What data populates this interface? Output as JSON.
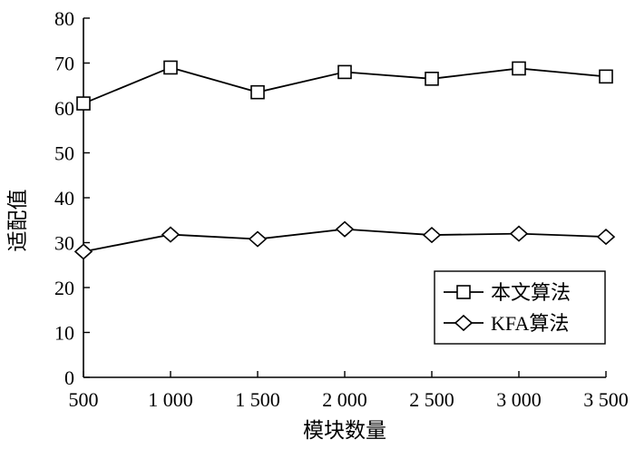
{
  "chart_data": {
    "type": "line",
    "xlabel": "模块数量",
    "ylabel": "适配值",
    "x": [
      500,
      1000,
      1500,
      2000,
      2500,
      3000,
      3500
    ],
    "x_tick_labels": [
      "500",
      "1 000",
      "1 500",
      "2 000",
      "2 500",
      "3 000",
      "3 500"
    ],
    "xlim": [
      500,
      3500
    ],
    "ylim": [
      0,
      80
    ],
    "y_ticks": [
      0,
      10,
      20,
      30,
      40,
      50,
      60,
      70,
      80
    ],
    "grid": false,
    "legend_position": "bottom-right",
    "series": [
      {
        "name": "本文算法",
        "marker": "square",
        "values": [
          61,
          69,
          63.5,
          68,
          66.5,
          68.8,
          67
        ]
      },
      {
        "name": "KFA算法",
        "marker": "diamond",
        "values": [
          28,
          31.8,
          30.8,
          33,
          31.7,
          32,
          31.3
        ]
      }
    ]
  }
}
